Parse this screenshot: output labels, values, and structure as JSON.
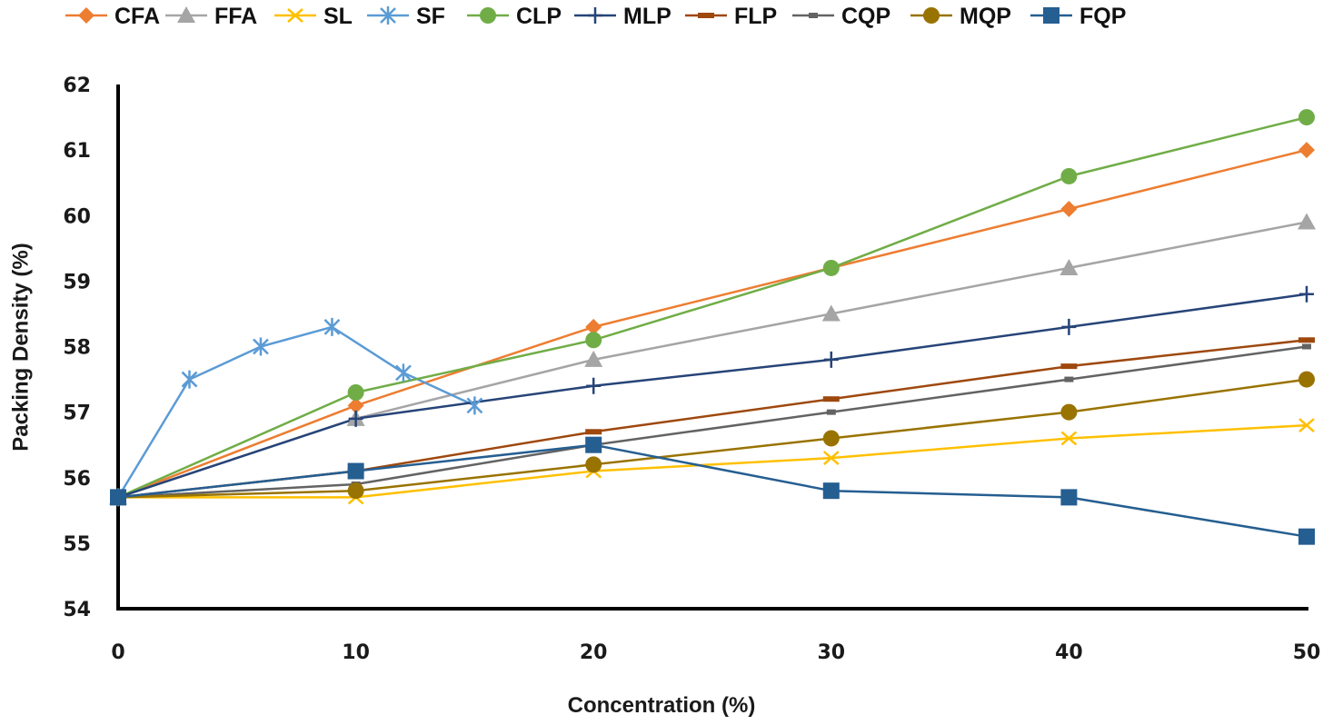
{
  "chart_data": {
    "type": "line",
    "title": "",
    "xlabel": "Concentration (%)",
    "ylabel": "Packing Density (%)",
    "xlim": [
      0,
      50
    ],
    "ylim": [
      54,
      62
    ],
    "x_ticks": [
      "0",
      "10",
      "20",
      "30",
      "40",
      "50"
    ],
    "y_ticks": [
      "54",
      "55",
      "56",
      "57",
      "58",
      "59",
      "60",
      "61",
      "62"
    ],
    "grid": false,
    "legend_position": "top",
    "series": [
      {
        "name": "CFA",
        "color": "#ED7D31",
        "marker": "diamond",
        "x": [
          0,
          10,
          20,
          30,
          40,
          50
        ],
        "values": [
          55.7,
          57.1,
          58.3,
          59.2,
          60.1,
          61.0
        ]
      },
      {
        "name": "FFA",
        "color": "#A5A5A5",
        "marker": "triangle",
        "x": [
          0,
          10,
          20,
          30,
          40,
          50
        ],
        "values": [
          55.7,
          56.9,
          57.8,
          58.5,
          59.2,
          59.9
        ]
      },
      {
        "name": "SL",
        "color": "#FFC000",
        "marker": "x",
        "x": [
          0,
          10,
          20,
          30,
          40,
          50
        ],
        "values": [
          55.7,
          55.7,
          56.1,
          56.3,
          56.6,
          56.8
        ]
      },
      {
        "name": "SF",
        "color": "#5B9BD5",
        "marker": "star",
        "x": [
          0,
          3,
          6,
          9,
          12,
          15
        ],
        "values": [
          55.7,
          57.5,
          58.0,
          58.3,
          57.6,
          57.1
        ]
      },
      {
        "name": "CLP",
        "color": "#70AD47",
        "marker": "circle",
        "x": [
          0,
          10,
          20,
          30,
          40,
          50
        ],
        "values": [
          55.7,
          57.3,
          58.1,
          59.2,
          60.6,
          61.5
        ]
      },
      {
        "name": "MLP",
        "color": "#264478",
        "marker": "plus",
        "x": [
          0,
          10,
          20,
          30,
          40,
          50
        ],
        "values": [
          55.7,
          56.9,
          57.4,
          57.8,
          58.3,
          58.8
        ]
      },
      {
        "name": "FLP",
        "color": "#9E480E",
        "marker": "dash",
        "x": [
          0,
          10,
          20,
          30,
          40,
          50
        ],
        "values": [
          55.7,
          56.1,
          56.7,
          57.2,
          57.7,
          58.1
        ]
      },
      {
        "name": "CQP",
        "color": "#636363",
        "marker": "small-dash",
        "x": [
          0,
          10,
          20,
          30,
          40,
          50
        ],
        "values": [
          55.7,
          55.9,
          56.5,
          57.0,
          57.5,
          58.0
        ]
      },
      {
        "name": "MQP",
        "color": "#997300",
        "marker": "circle",
        "x": [
          0,
          10,
          20,
          30,
          40,
          50
        ],
        "values": [
          55.7,
          55.8,
          56.2,
          56.6,
          57.0,
          57.5
        ]
      },
      {
        "name": "FQP",
        "color": "#255E91",
        "marker": "square",
        "x": [
          0,
          10,
          20,
          30,
          40,
          50
        ],
        "values": [
          55.7,
          56.1,
          56.5,
          55.8,
          55.7,
          55.1
        ]
      }
    ]
  }
}
